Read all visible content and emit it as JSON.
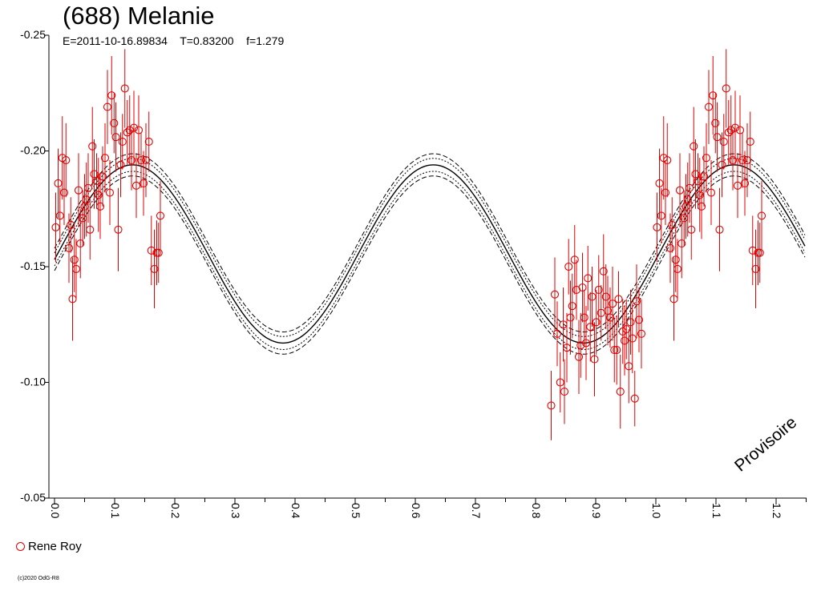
{
  "title": "(688) Melanie",
  "params": {
    "epoch": "E=2011-10-16.89834",
    "period": "T=0.83200",
    "f": "f=1.279"
  },
  "watermark": "Provisoire",
  "copyright": "(c)2020 OdG-R8",
  "legend": [
    {
      "name": "Rene Roy",
      "color": "#e00000",
      "marker": "open-circle"
    }
  ],
  "chart_data": {
    "type": "scatter",
    "xlabel": "",
    "ylabel": "",
    "xlim": [
      0,
      1.25
    ],
    "ylim": [
      -0.25,
      -0.05
    ],
    "y_inverted": true,
    "xticks": [
      "0.0",
      "0.1",
      "0.2",
      "0.3",
      "0.4",
      "0.5",
      "0.6",
      "0.7",
      "0.8",
      "0.9",
      "1.0",
      "1.1",
      "1.2"
    ],
    "yticks": [
      "-0.25",
      "-0.20",
      "-0.15",
      "-0.10",
      "-0.05"
    ],
    "grid": false,
    "model": {
      "mean": -0.1555,
      "amplitude": 0.0385,
      "phase_peak": 0.13,
      "harmonic": 2,
      "inner_band_offset": 0.0028,
      "outer_band_offset": 0.0048
    },
    "series": [
      {
        "name": "Rene Roy",
        "color": "#e00000",
        "marker": "open-circle",
        "phase_repeat": 1.0,
        "points": [
          [
            0.002,
            -0.167,
            0.015
          ],
          [
            0.006,
            -0.186,
            0.015
          ],
          [
            0.009,
            -0.172,
            0.012
          ],
          [
            0.013,
            -0.197,
            0.018
          ],
          [
            0.016,
            -0.182,
            0.014
          ],
          [
            0.019,
            -0.196,
            0.016
          ],
          [
            0.024,
            -0.158,
            0.015
          ],
          [
            0.027,
            -0.168,
            0.012
          ],
          [
            0.03,
            -0.136,
            0.018
          ],
          [
            0.033,
            -0.153,
            0.014
          ],
          [
            0.036,
            -0.149,
            0.013
          ],
          [
            0.04,
            -0.183,
            0.016
          ],
          [
            0.043,
            -0.16,
            0.015
          ],
          [
            0.047,
            -0.171,
            0.012
          ],
          [
            0.05,
            -0.176,
            0.014
          ],
          [
            0.053,
            -0.179,
            0.016
          ],
          [
            0.056,
            -0.184,
            0.015
          ],
          [
            0.059,
            -0.166,
            0.013
          ],
          [
            0.063,
            -0.202,
            0.017
          ],
          [
            0.066,
            -0.19,
            0.015
          ],
          [
            0.07,
            -0.187,
            0.012
          ],
          [
            0.073,
            -0.181,
            0.016
          ],
          [
            0.076,
            -0.176,
            0.014
          ],
          [
            0.08,
            -0.189,
            0.013
          ],
          [
            0.084,
            -0.197,
            0.015
          ],
          [
            0.088,
            -0.219,
            0.016
          ],
          [
            0.092,
            -0.182,
            0.014
          ],
          [
            0.095,
            -0.224,
            0.017
          ],
          [
            0.099,
            -0.212,
            0.013
          ],
          [
            0.102,
            -0.206,
            0.015
          ],
          [
            0.106,
            -0.166,
            0.018
          ],
          [
            0.11,
            -0.194,
            0.014
          ],
          [
            0.113,
            -0.204,
            0.012
          ],
          [
            0.117,
            -0.227,
            0.017
          ],
          [
            0.121,
            -0.208,
            0.014
          ],
          [
            0.125,
            -0.209,
            0.015
          ],
          [
            0.128,
            -0.196,
            0.013
          ],
          [
            0.132,
            -0.21,
            0.016
          ],
          [
            0.136,
            -0.185,
            0.014
          ],
          [
            0.14,
            -0.209,
            0.015
          ],
          [
            0.144,
            -0.196,
            0.012
          ],
          [
            0.148,
            -0.186,
            0.014
          ],
          [
            0.152,
            -0.196,
            0.016
          ],
          [
            0.157,
            -0.204,
            0.013
          ],
          [
            0.161,
            -0.157,
            0.015
          ],
          [
            0.166,
            -0.149,
            0.017
          ],
          [
            0.17,
            -0.156,
            0.014
          ],
          [
            0.173,
            -0.156,
            0.013
          ],
          [
            0.176,
            -0.172,
            0.015
          ],
          [
            0.826,
            -0.09,
            0.015
          ],
          [
            0.832,
            -0.138,
            0.016
          ],
          [
            0.836,
            -0.121,
            0.014
          ],
          [
            0.841,
            -0.1,
            0.013
          ],
          [
            0.846,
            -0.125,
            0.016
          ],
          [
            0.848,
            -0.096,
            0.014
          ],
          [
            0.852,
            -0.115,
            0.015
          ],
          [
            0.855,
            -0.15,
            0.012
          ],
          [
            0.858,
            -0.128,
            0.016
          ],
          [
            0.861,
            -0.133,
            0.014
          ],
          [
            0.865,
            -0.153,
            0.015
          ],
          [
            0.868,
            -0.14,
            0.013
          ],
          [
            0.872,
            -0.111,
            0.016
          ],
          [
            0.875,
            -0.116,
            0.014
          ],
          [
            0.878,
            -0.141,
            0.015
          ],
          [
            0.881,
            -0.128,
            0.012
          ],
          [
            0.884,
            -0.117,
            0.016
          ],
          [
            0.887,
            -0.145,
            0.014
          ],
          [
            0.891,
            -0.124,
            0.015
          ],
          [
            0.894,
            -0.137,
            0.013
          ],
          [
            0.898,
            -0.11,
            0.016
          ],
          [
            0.901,
            -0.126,
            0.014
          ],
          [
            0.905,
            -0.14,
            0.015
          ],
          [
            0.909,
            -0.13,
            0.012
          ],
          [
            0.913,
            -0.148,
            0.016
          ],
          [
            0.917,
            -0.137,
            0.014
          ],
          [
            0.92,
            -0.131,
            0.015
          ],
          [
            0.924,
            -0.128,
            0.013
          ],
          [
            0.928,
            -0.134,
            0.016
          ],
          [
            0.931,
            -0.114,
            0.014
          ],
          [
            0.935,
            -0.114,
            0.015
          ],
          [
            0.938,
            -0.136,
            0.012
          ],
          [
            0.941,
            -0.096,
            0.016
          ],
          [
            0.945,
            -0.122,
            0.014
          ],
          [
            0.948,
            -0.118,
            0.015
          ],
          [
            0.951,
            -0.123,
            0.013
          ],
          [
            0.955,
            -0.107,
            0.016
          ],
          [
            0.958,
            -0.126,
            0.014
          ],
          [
            0.961,
            -0.119,
            0.015
          ],
          [
            0.965,
            -0.093,
            0.012
          ],
          [
            0.968,
            -0.135,
            0.016
          ],
          [
            0.972,
            -0.127,
            0.014
          ],
          [
            0.976,
            -0.121,
            0.015
          ]
        ]
      }
    ]
  }
}
